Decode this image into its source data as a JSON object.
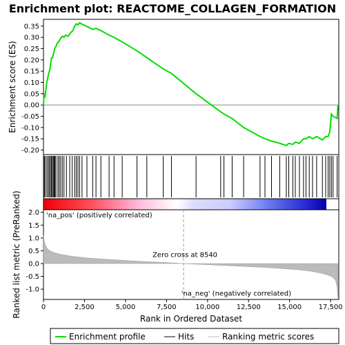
{
  "title": "Enrichment plot: REACTOME_COLLAGEN_FORMATION",
  "colors": {
    "enrichment": "#00dd00",
    "hits": "#000000",
    "metric_fill": "#bbbbbb",
    "pos_label": "#cc0000",
    "neg_label": "#0000cc",
    "zero_line": "#888888"
  },
  "legend": {
    "items": [
      {
        "label": "Enrichment profile",
        "symbol": "green-line"
      },
      {
        "label": "Hits",
        "symbol": "black-line"
      },
      {
        "label": "Ranking metric scores",
        "symbol": "gray-line"
      }
    ]
  },
  "chart_data": [
    {
      "type": "line",
      "name": "enrichment-profile",
      "ylabel": "Enrichment score (ES)",
      "xlim": [
        0,
        18000
      ],
      "ylim": [
        -0.22,
        0.38
      ],
      "yticks": [
        -0.2,
        -0.15,
        -0.1,
        -0.05,
        0.0,
        0.05,
        0.1,
        0.15,
        0.2,
        0.25,
        0.3,
        0.35
      ],
      "ytick_labels": [
        "-0.20",
        "-0.15",
        "-0.10",
        "-0.05",
        "0.00",
        "0.05",
        "0.10",
        "0.15",
        "0.20",
        "0.25",
        "0.30",
        "0.35"
      ],
      "grid": false,
      "x": [
        0,
        40,
        100,
        200,
        260,
        320,
        400,
        450,
        500,
        560,
        620,
        680,
        760,
        840,
        920,
        1000,
        1080,
        1160,
        1250,
        1350,
        1500,
        1650,
        1800,
        1900,
        2000,
        2100,
        2200,
        2300,
        2600,
        3000,
        3200,
        3500,
        4000,
        4300,
        4800,
        5700,
        6300,
        7300,
        7800,
        9300,
        10800,
        11000,
        11500,
        12200,
        13200,
        13500,
        13900,
        14400,
        14800,
        14950,
        15200,
        15350,
        15600,
        15850,
        16000,
        16200,
        16400,
        16650,
        17000,
        17200,
        17350,
        17450,
        17550,
        17650,
        17900,
        17950
      ],
      "y": [
        0.0,
        0.05,
        0.04,
        0.1,
        0.12,
        0.14,
        0.16,
        0.19,
        0.21,
        0.21,
        0.23,
        0.25,
        0.26,
        0.275,
        0.28,
        0.29,
        0.3,
        0.305,
        0.3,
        0.31,
        0.305,
        0.32,
        0.33,
        0.35,
        0.36,
        0.355,
        0.365,
        0.36,
        0.35,
        0.335,
        0.34,
        0.33,
        0.31,
        0.3,
        0.28,
        0.24,
        0.21,
        0.16,
        0.14,
        0.05,
        -0.03,
        -0.04,
        -0.06,
        -0.1,
        -0.14,
        -0.15,
        -0.16,
        -0.17,
        -0.18,
        -0.17,
        -0.175,
        -0.165,
        -0.17,
        -0.15,
        -0.15,
        -0.14,
        -0.15,
        -0.14,
        -0.155,
        -0.14,
        -0.14,
        -0.12,
        -0.04,
        -0.05,
        -0.06,
        0.0
      ]
    },
    {
      "type": "scatter",
      "name": "hits",
      "xlim": [
        0,
        18000
      ],
      "x": [
        50,
        100,
        200,
        280,
        350,
        420,
        480,
        540,
        600,
        650,
        700,
        760,
        880,
        960,
        1050,
        1150,
        1250,
        1400,
        1600,
        1750,
        1900,
        2000,
        2100,
        2200,
        2350,
        2650,
        3000,
        3200,
        3500,
        4000,
        4300,
        4800,
        5700,
        6300,
        7300,
        7800,
        9300,
        10800,
        11000,
        11500,
        12200,
        13200,
        13500,
        13900,
        14400,
        14800,
        14950,
        15200,
        15350,
        15600,
        15850,
        16000,
        16200,
        16400,
        16650,
        17000,
        17200,
        17350,
        17450,
        17550,
        17650,
        17900
      ]
    },
    {
      "type": "area",
      "name": "ranking-metric",
      "xlabel": "Rank in Ordered Dataset",
      "ylabel": "Ranked list metric (PreRanked)",
      "xlim": [
        0,
        18000
      ],
      "ylim": [
        -1.4,
        2.1
      ],
      "xticks": [
        0,
        2500,
        5000,
        7500,
        10000,
        12500,
        15000,
        17500
      ],
      "xtick_labels": [
        "0",
        "2,500",
        "5,000",
        "7,500",
        "10,000",
        "12,500",
        "15,000",
        "17,500"
      ],
      "yticks": [
        -1.0,
        -0.5,
        0.0,
        0.5,
        1.0,
        1.5,
        2.0
      ],
      "ytick_labels": [
        "-1.0",
        "-0.5",
        "0.0",
        "0.5",
        "1.0",
        "1.5",
        "2.0"
      ],
      "x": [
        0,
        30,
        80,
        150,
        250,
        400,
        600,
        900,
        1300,
        1800,
        2500,
        3500,
        4500,
        5500,
        6500,
        7500,
        8540,
        9500,
        10500,
        11500,
        12500,
        13500,
        14500,
        15500,
        16300,
        16900,
        17300,
        17600,
        17800,
        17900,
        17950
      ],
      "y": [
        1.1,
        0.95,
        0.8,
        0.68,
        0.58,
        0.5,
        0.44,
        0.38,
        0.33,
        0.28,
        0.23,
        0.18,
        0.14,
        0.1,
        0.07,
        0.04,
        0.0,
        -0.03,
        -0.06,
        -0.09,
        -0.12,
        -0.15,
        -0.19,
        -0.24,
        -0.3,
        -0.37,
        -0.44,
        -0.52,
        -0.65,
        -0.9,
        -1.35
      ],
      "zero_cross": 8540,
      "zero_cross_label": "Zero cross at 8540",
      "pos_label": "'na_pos' (positively correlated)",
      "neg_label": "'na_neg' (negatively correlated)"
    }
  ]
}
